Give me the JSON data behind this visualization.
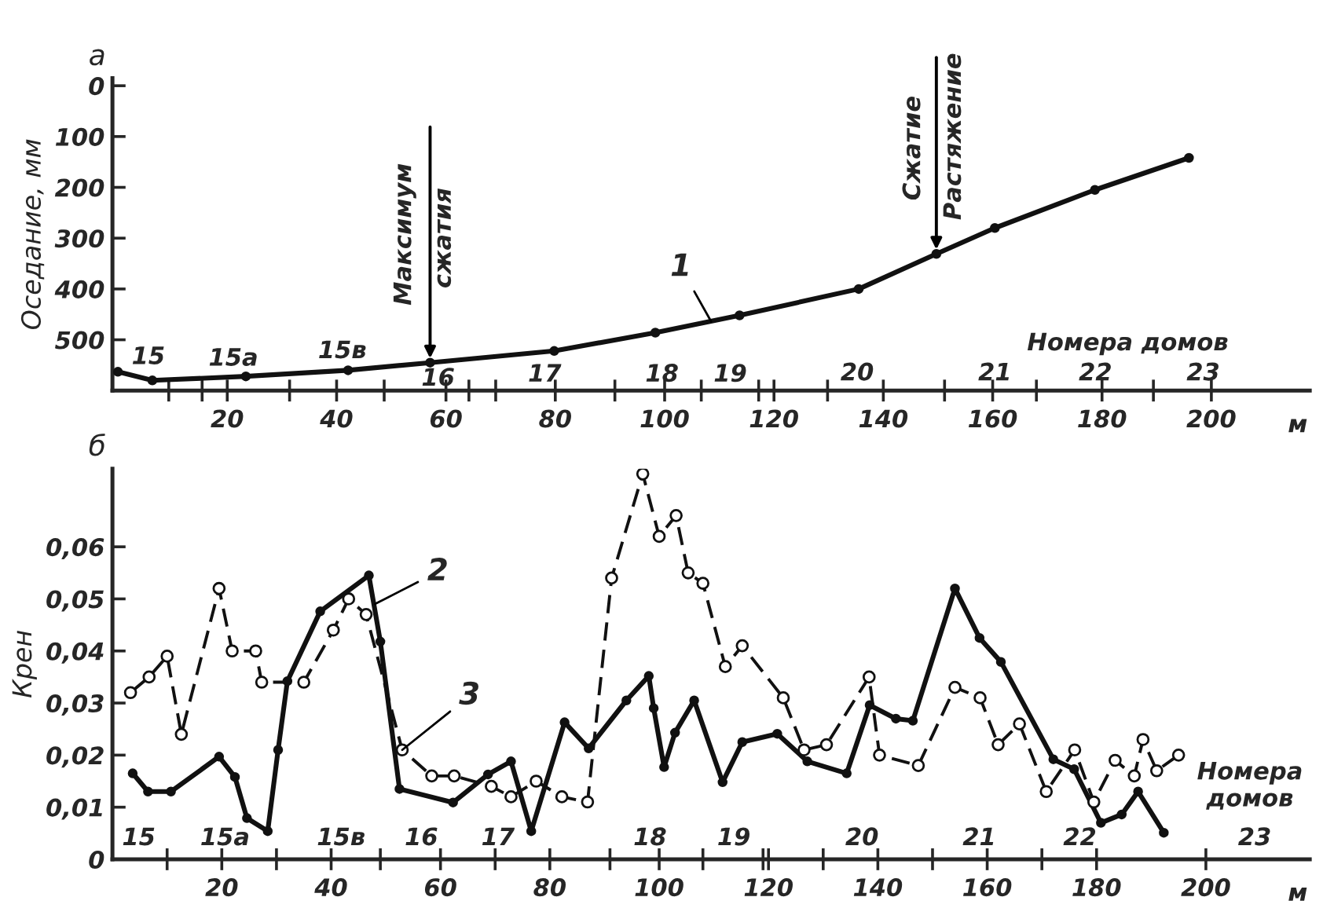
{
  "chart_data": [
    {
      "type": "line",
      "title": "а",
      "ylabel": "Оседание, мм",
      "xlabel": "м",
      "xlim": [
        -1,
        218
      ],
      "ylim": [
        600,
        -15
      ],
      "xticks": [
        20,
        40,
        60,
        80,
        100,
        120,
        140,
        160,
        180,
        200,
        {
          "value": 9.3,
          "label": null
        },
        {
          "value": 15.4,
          "label": null
        },
        {
          "value": 31.4,
          "label": null
        },
        {
          "value": 48.7,
          "label": null
        },
        {
          "value": 64.2,
          "label": null
        },
        {
          "value": 69.1,
          "label": null
        },
        {
          "value": 90.9,
          "label": null
        },
        {
          "value": 106.7,
          "label": null
        },
        {
          "value": 117.2,
          "label": null
        },
        {
          "value": 129.8,
          "label": null
        },
        {
          "value": 151.2,
          "label": null
        },
        {
          "value": 168,
          "label": null
        },
        {
          "value": 189.4,
          "label": null
        }
      ],
      "yticks": [
        0,
        100,
        200,
        300,
        400,
        500
      ],
      "grid": false,
      "legend": false,
      "series": [
        {
          "color": "#111111",
          "marker": "circle",
          "line_style": "solid",
          "x": [
            0,
            6.3,
            23.4,
            42.1,
            57.1,
            79.8,
            98.3,
            113.7,
            135.5,
            149.7,
            160.4,
            178.7,
            195.9
          ],
          "values": [
            563,
            580,
            572,
            560,
            545,
            522,
            486,
            452,
            400,
            331,
            280,
            205,
            142
          ]
        }
      ],
      "annotations": [
        {
          "text": "Максимум",
          "x": 57.1,
          "y": 545
        },
        {
          "text": "Сжатие",
          "x": 149.7,
          "y": 331
        },
        {
          "text": "1",
          "x": 108.5,
          "y": 464
        },
        "сжатия",
        "Растяжение",
        "15",
        "15а",
        "15в",
        "16",
        "17",
        "18",
        "19",
        "20",
        "21",
        "22",
        "23",
        "Номера домов"
      ]
    },
    {
      "type": "line",
      "title": "б",
      "ylabel": "Крен",
      "xlabel": "м",
      "xlim": [
        0,
        219
      ],
      "ylim": [
        0,
        0.075
      ],
      "xticks": [
        20,
        40,
        60,
        80,
        100,
        120,
        140,
        160,
        180,
        200,
        {
          "value": 10,
          "label": null
        },
        {
          "value": 30,
          "label": null
        },
        {
          "value": 49,
          "label": null
        },
        {
          "value": 70,
          "label": null
        },
        {
          "value": 91,
          "label": null
        },
        {
          "value": 108,
          "label": null
        },
        {
          "value": 119,
          "label": null
        },
        {
          "value": 130,
          "label": null
        },
        {
          "value": 150,
          "label": null
        },
        {
          "value": 170,
          "label": null
        }
      ],
      "yticks": [
        0,
        {
          "value": 0.01,
          "label": "0,01"
        },
        {
          "value": 0.02,
          "label": "0,02"
        },
        {
          "value": 0.03,
          "label": "0,03"
        },
        {
          "value": 0.04,
          "label": "0,04"
        },
        {
          "value": 0.05,
          "label": "0,05"
        },
        {
          "value": 0.06,
          "label": "0,06"
        }
      ],
      "grid": false,
      "legend": false,
      "series": [
        {
          "color": "#111111",
          "marker": "circle",
          "line_style": "solid",
          "x": [
            3.7,
            6.5,
            10.7,
            19.5,
            22.4,
            24.6,
            28.4,
            30.3,
            32,
            38,
            46.9,
            49,
            52.5,
            62.3,
            68.7,
            72.9,
            76.6,
            82.7,
            87.1,
            94,
            98.1,
            99,
            100.9,
            102.9,
            106.4,
            111.6,
            115.2,
            121.6,
            127.1,
            134.3,
            138.5,
            143.3,
            146.4,
            154.1,
            158.6,
            162.5,
            172.1,
            175.9,
            180.8,
            184.6,
            187.6,
            192.3
          ],
          "values": [
            0.0165,
            0.013,
            0.013,
            0.0197,
            0.0158,
            0.0079,
            0.0054,
            0.021,
            0.0342,
            0.0476,
            0.0545,
            0.0418,
            0.0135,
            0.0109,
            0.0163,
            0.0188,
            0.0054,
            0.0263,
            0.0213,
            0.0305,
            0.0352,
            0.029,
            0.0177,
            0.0243,
            0.0305,
            0.0148,
            0.0225,
            0.0241,
            0.0188,
            0.0165,
            0.0296,
            0.027,
            0.0266,
            0.052,
            0.0425,
            0.0379,
            0.0192,
            0.0173,
            0.007,
            0.0086,
            0.013,
            0.0051
          ]
        },
        {
          "color": "#111111",
          "marker": "circle",
          "line_style": "dashed",
          "x": [
            3.3,
            6.7,
            10,
            12.6,
            19.5,
            21.9,
            26.2,
            27.3,
            35,
            40.4,
            43.2,
            46.4,
            53,
            58.4,
            62.5,
            69.3,
            72.9,
            77.5,
            82.2,
            86.9,
            91.3,
            97,
            100,
            103.1,
            105.3,
            108,
            112.1,
            115.2,
            122.7,
            126.5,
            130.6,
            138.4,
            140.3,
            147.4,
            154.1,
            158.7,
            162,
            165.9,
            170.8,
            176,
            179.5,
            183.4,
            186.9,
            188.5,
            191,
            195
          ],
          "values": [
            0.032,
            0.035,
            0.039,
            0.024,
            0.052,
            0.04,
            0.04,
            0.034,
            0.034,
            0.044,
            0.05,
            0.047,
            0.021,
            0.016,
            0.016,
            0.014,
            0.012,
            0.015,
            0.012,
            0.011,
            0.054,
            0.074,
            0.062,
            0.066,
            0.055,
            0.053,
            0.037,
            0.041,
            0.031,
            0.021,
            0.022,
            0.035,
            0.02,
            0.018,
            0.033,
            0.031,
            0.022,
            0.026,
            0.013,
            0.021,
            0.011,
            0.019,
            0.016,
            0.023,
            0.017,
            0.02
          ]
        }
      ],
      "annotations": [
        {
          "text": "2",
          "x": 48,
          "y": 0.049
        },
        {
          "text": "3",
          "x": 53,
          "y": 0.021
        },
        "15",
        "15а",
        "15в",
        "16",
        "17",
        "18",
        "19",
        "20",
        "21",
        "22",
        "23",
        "Номера домов"
      ]
    }
  ]
}
